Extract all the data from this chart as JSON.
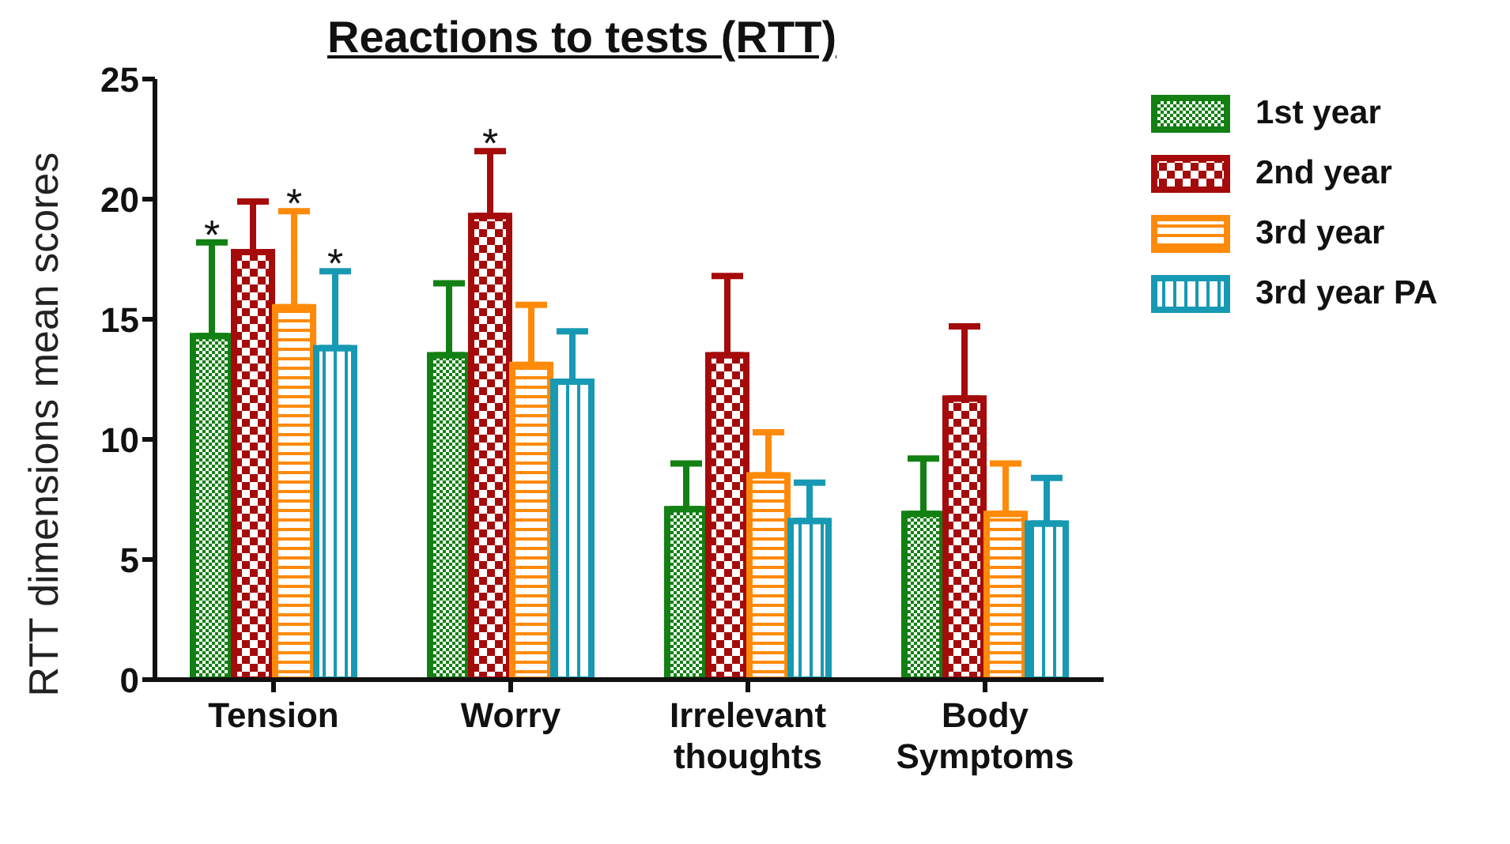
{
  "chart_data": {
    "type": "bar",
    "title": "Reactions to tests (RTT)",
    "ylabel": "RTT dimensions mean scores",
    "categories": [
      "Tension",
      "Worry",
      "Irrelevant thoughts",
      "Body Symptoms"
    ],
    "series": [
      {
        "name": "1st year",
        "color": "#128012",
        "values": [
          14.3,
          13.5,
          7.1,
          6.9
        ],
        "errors": [
          [
            14.3,
            18.2
          ],
          [
            13.5,
            16.5
          ],
          [
            7.1,
            9.0
          ],
          [
            6.9,
            9.2
          ]
        ],
        "value_labels": [
          "*",
          null,
          null,
          null
        ]
      },
      {
        "name": "2nd year",
        "color": "#a50b0b",
        "values": [
          17.8,
          19.3,
          13.5,
          11.7
        ],
        "errors": [
          [
            17.8,
            19.9
          ],
          [
            19.3,
            22.0
          ],
          [
            13.5,
            16.8
          ],
          [
            11.7,
            14.7
          ]
        ],
        "value_labels": [
          null,
          "*",
          null,
          null
        ]
      },
      {
        "name": "3rd year",
        "color": "#ff8a0a",
        "values": [
          15.5,
          13.1,
          8.5,
          6.9
        ],
        "errors": [
          [
            15.5,
            19.5
          ],
          [
            13.1,
            15.6
          ],
          [
            8.5,
            10.3
          ],
          [
            6.9,
            9.0
          ]
        ],
        "value_labels": [
          "*",
          null,
          null,
          null
        ]
      },
      {
        "name": "3rd year PA",
        "color": "#1799b3",
        "values": [
          13.8,
          12.4,
          6.6,
          6.5
        ],
        "errors": [
          [
            13.8,
            17.0
          ],
          [
            12.4,
            14.5
          ],
          [
            6.6,
            8.2
          ],
          [
            6.5,
            8.4
          ]
        ],
        "value_labels": [
          "*",
          null,
          null,
          null
        ]
      }
    ],
    "ylim": [
      0,
      25
    ],
    "yticks": [
      0,
      5,
      10,
      15,
      20,
      25
    ],
    "grid": false,
    "legend": "right"
  }
}
